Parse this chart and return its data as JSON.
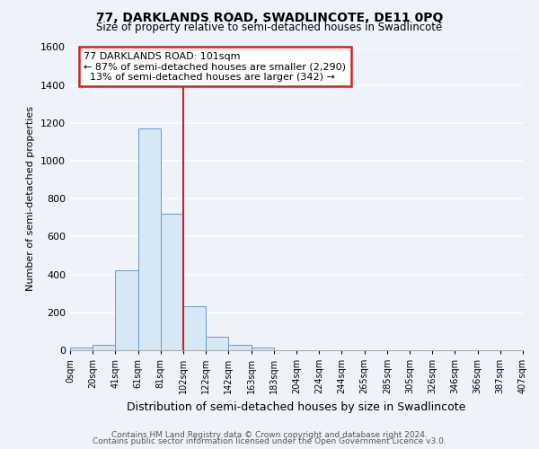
{
  "title": "77, DARKLANDS ROAD, SWADLINCOTE, DE11 0PQ",
  "subtitle": "Size of property relative to semi-detached houses in Swadlincote",
  "xlabel": "Distribution of semi-detached houses by size in Swadlincote",
  "ylabel": "Number of semi-detached properties",
  "bin_labels": [
    "0sqm",
    "20sqm",
    "41sqm",
    "61sqm",
    "81sqm",
    "102sqm",
    "122sqm",
    "142sqm",
    "163sqm",
    "183sqm",
    "204sqm",
    "224sqm",
    "244sqm",
    "265sqm",
    "285sqm",
    "305sqm",
    "326sqm",
    "346sqm",
    "366sqm",
    "387sqm",
    "407sqm"
  ],
  "bar_values": [
    15,
    30,
    420,
    1170,
    720,
    230,
    70,
    30,
    15,
    0,
    0,
    0,
    0,
    0,
    0,
    0,
    0,
    0,
    0,
    0
  ],
  "bar_color": "#d6e8f5",
  "bar_edge_color": "#6699cc",
  "annotation_title": "77 DARKLANDS ROAD: 101sqm",
  "annotation_line1": "← 87% of semi-detached houses are smaller (2,290)",
  "annotation_line2": "  13% of semi-detached houses are larger (342) →",
  "annotation_box_color": "#ffffff",
  "annotation_box_edge": "#cc2222",
  "vline_color": "#cc2222",
  "ylim": [
    0,
    1600
  ],
  "yticks": [
    0,
    200,
    400,
    600,
    800,
    1000,
    1200,
    1400,
    1600
  ],
  "footer1": "Contains HM Land Registry data © Crown copyright and database right 2024.",
  "footer2": "Contains public sector information licensed under the Open Government Licence v3.0.",
  "bg_color": "#eef2fb",
  "grid_color": "#ffffff"
}
